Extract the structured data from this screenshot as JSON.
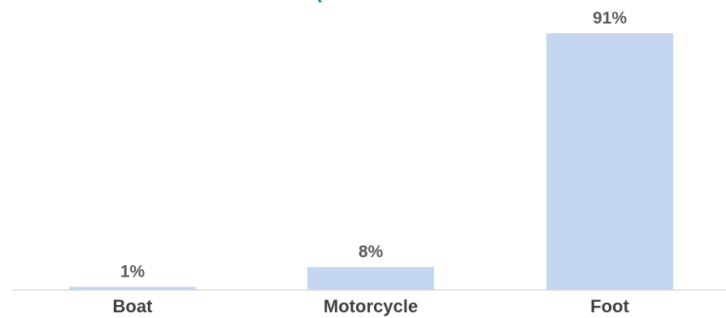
{
  "chart_data": {
    "type": "bar",
    "title_fragment": "(",
    "categories": [
      "Boat",
      "Motorcycle",
      "Foot"
    ],
    "values": [
      1,
      8,
      91
    ],
    "value_labels": [
      "1%",
      "8%",
      "91%"
    ],
    "unit": "%",
    "ylim": [
      0,
      91
    ],
    "grid": false,
    "legend": "none",
    "colors": {
      "bar": "#c5d7f0",
      "axis": "#d9d9d9",
      "title": "#2e75b6",
      "data_label": "#595959",
      "tick_label": "#404040"
    }
  }
}
